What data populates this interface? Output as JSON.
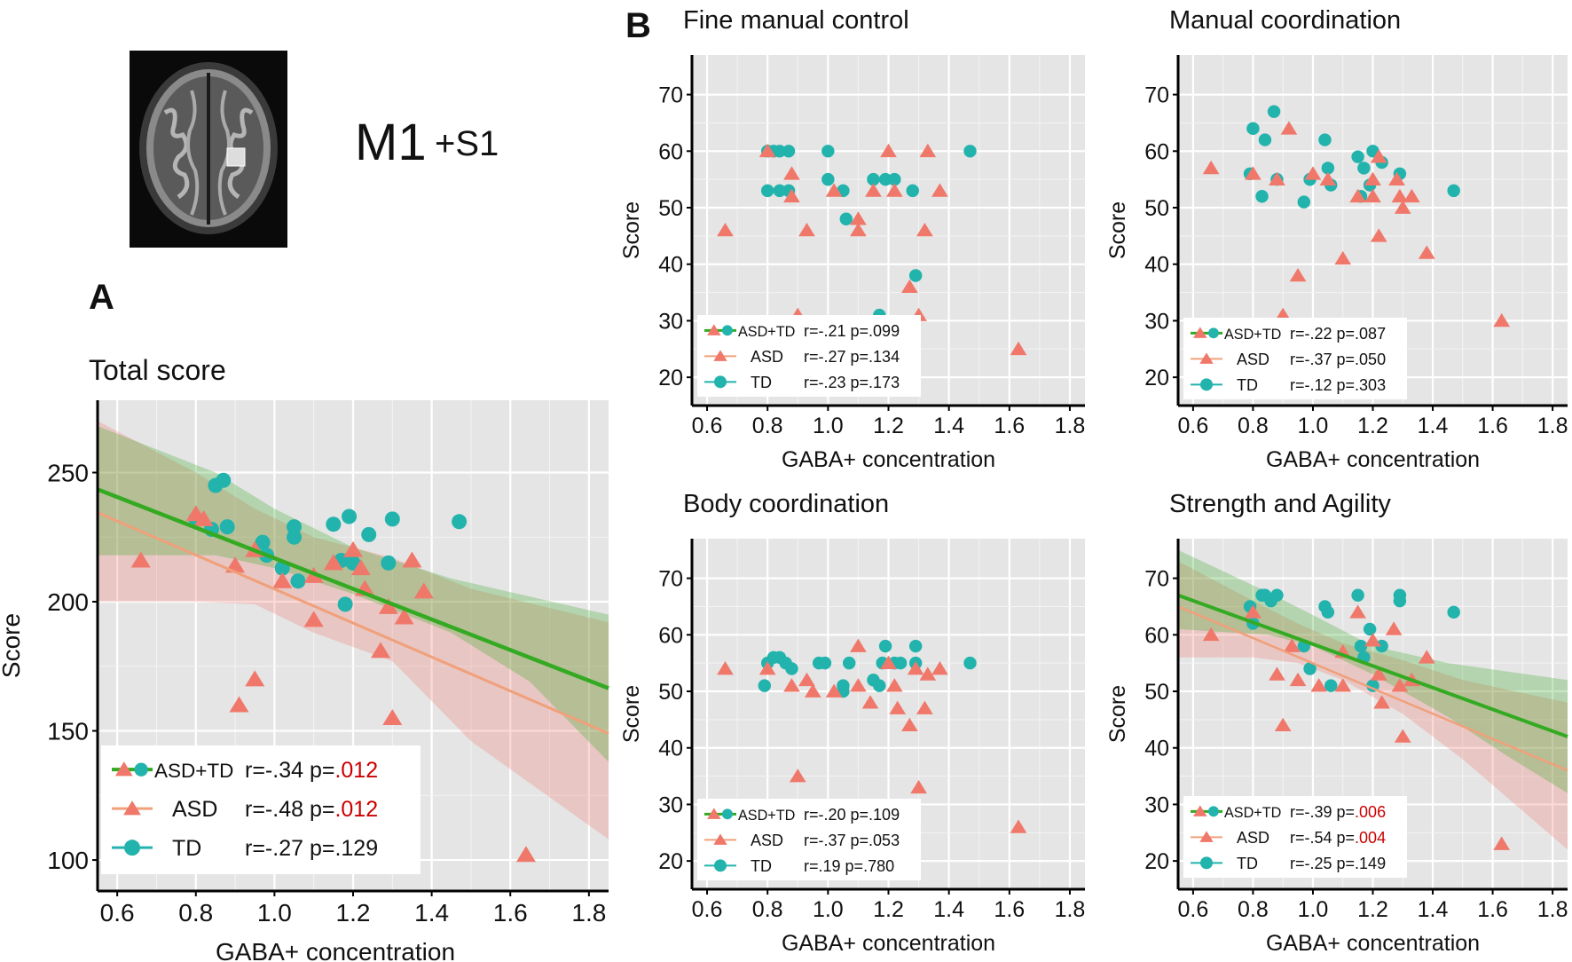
{
  "figure": {
    "region_title": "M1",
    "region_suffix": "+S1",
    "panel_a_letter": "A",
    "panel_b_letter": "B",
    "colors": {
      "asd": "#f0786b",
      "td": "#22b3ad",
      "combined": "#33aa22",
      "asd_line": "#f0a07a",
      "panel_bg": "#e5e5e5",
      "p_highlight": "#cc0000",
      "text": "#111111"
    }
  },
  "chart_data": [
    {
      "id": "total",
      "type": "scatter",
      "title": "Total score",
      "xlabel": "GABA+ concentration",
      "ylabel": "Score",
      "xlim": [
        0.55,
        1.85
      ],
      "ylim": [
        88,
        278
      ],
      "xticks": [
        "0.6",
        "0.8",
        "1.0",
        "1.2",
        "1.4",
        "1.6",
        "1.8"
      ],
      "yticks": [
        "100",
        "150",
        "200",
        "250"
      ],
      "ytick_values": [
        100,
        150,
        200,
        250
      ],
      "asd": [
        [
          0.66,
          216
        ],
        [
          0.8,
          234
        ],
        [
          0.82,
          232
        ],
        [
          0.9,
          214
        ],
        [
          0.91,
          160
        ],
        [
          0.95,
          220
        ],
        [
          0.95,
          170
        ],
        [
          1.02,
          208
        ],
        [
          1.1,
          193
        ],
        [
          1.1,
          210
        ],
        [
          1.15,
          215
        ],
        [
          1.2,
          220
        ],
        [
          1.22,
          213
        ],
        [
          1.23,
          205
        ],
        [
          1.27,
          181
        ],
        [
          1.29,
          198
        ],
        [
          1.3,
          155
        ],
        [
          1.33,
          194
        ],
        [
          1.35,
          216
        ],
        [
          1.38,
          204
        ],
        [
          1.64,
          102
        ]
      ],
      "td": [
        [
          0.8,
          232
        ],
        [
          0.84,
          228
        ],
        [
          0.85,
          245
        ],
        [
          0.87,
          247
        ],
        [
          0.88,
          229
        ],
        [
          0.97,
          223
        ],
        [
          0.98,
          218
        ],
        [
          1.02,
          213
        ],
        [
          1.05,
          225
        ],
        [
          1.05,
          229
        ],
        [
          1.06,
          208
        ],
        [
          1.15,
          230
        ],
        [
          1.17,
          216
        ],
        [
          1.18,
          199
        ],
        [
          1.19,
          233
        ],
        [
          1.2,
          215
        ],
        [
          1.24,
          226
        ],
        [
          1.29,
          215
        ],
        [
          1.3,
          232
        ],
        [
          1.47,
          231
        ]
      ],
      "fits": {
        "combined": {
          "x0": 0.55,
          "y0": 243.5,
          "x1": 1.85,
          "y1": 166.5
        },
        "asd": {
          "x0": 0.55,
          "y0": 234.5,
          "x1": 1.85,
          "y1": 149
        },
        "combined_band_upper": [
          [
            0.55,
            268
          ],
          [
            0.85,
            250
          ],
          [
            1.0,
            236
          ],
          [
            1.2,
            221
          ],
          [
            1.45,
            209
          ],
          [
            1.65,
            202
          ],
          [
            1.85,
            195
          ]
        ],
        "combined_band_lower": [
          [
            0.55,
            218
          ],
          [
            0.85,
            218
          ],
          [
            1.0,
            213
          ],
          [
            1.2,
            203
          ],
          [
            1.45,
            188
          ],
          [
            1.65,
            169
          ],
          [
            1.85,
            138
          ]
        ],
        "asd_band_upper": [
          [
            0.55,
            270
          ],
          [
            0.8,
            250
          ],
          [
            0.95,
            236
          ],
          [
            1.1,
            225
          ],
          [
            1.3,
            217
          ],
          [
            1.5,
            205
          ],
          [
            1.85,
            192
          ]
        ],
        "asd_band_lower": [
          [
            0.55,
            200
          ],
          [
            0.8,
            200
          ],
          [
            0.95,
            199
          ],
          [
            1.1,
            188
          ],
          [
            1.3,
            177
          ],
          [
            1.5,
            146
          ],
          [
            1.85,
            108
          ]
        ]
      },
      "legend": {
        "position": "bottom-left",
        "combined_label": "ASD+TD",
        "asd_label": "ASD",
        "td_label": "TD",
        "combined_r": "r=-.34 p=",
        "combined_p": ".012",
        "combined_p_sig": true,
        "asd_r": "r=-.48 p=",
        "asd_p": ".012",
        "asd_p_sig": true,
        "td_r": "r=-.27 p=",
        "td_p": ".129",
        "td_p_sig": false
      }
    },
    {
      "id": "fine",
      "type": "scatter",
      "title": "Fine manual control",
      "xlabel": "GABA+ concentration",
      "ylabel": "Score",
      "xlim": [
        0.55,
        1.85
      ],
      "ylim": [
        15,
        77
      ],
      "xticks": [
        "0.6",
        "0.8",
        "1.0",
        "1.2",
        "1.4",
        "1.6",
        "1.8"
      ],
      "yticks": [
        "20",
        "30",
        "40",
        "50",
        "60",
        "70"
      ],
      "ytick_values": [
        20,
        30,
        40,
        50,
        60,
        70
      ],
      "asd": [
        [
          0.66,
          46
        ],
        [
          0.8,
          60
        ],
        [
          0.88,
          56
        ],
        [
          0.88,
          52
        ],
        [
          0.9,
          31
        ],
        [
          0.93,
          46
        ],
        [
          1.02,
          53
        ],
        [
          1.1,
          48
        ],
        [
          1.1,
          46
        ],
        [
          1.15,
          53
        ],
        [
          1.2,
          60
        ],
        [
          1.22,
          53
        ],
        [
          1.27,
          36
        ],
        [
          1.3,
          31
        ],
        [
          1.32,
          46
        ],
        [
          1.33,
          60
        ],
        [
          1.37,
          53
        ],
        [
          1.63,
          25
        ]
      ],
      "td": [
        [
          0.8,
          60
        ],
        [
          0.8,
          53
        ],
        [
          0.82,
          60
        ],
        [
          0.84,
          60
        ],
        [
          0.84,
          53
        ],
        [
          0.87,
          60
        ],
        [
          0.87,
          53
        ],
        [
          1.0,
          60
        ],
        [
          1.0,
          55
        ],
        [
          1.05,
          53
        ],
        [
          1.06,
          48
        ],
        [
          1.15,
          55
        ],
        [
          1.17,
          31
        ],
        [
          1.19,
          55
        ],
        [
          1.22,
          55
        ],
        [
          1.28,
          53
        ],
        [
          1.29,
          38
        ],
        [
          1.47,
          60
        ]
      ],
      "fits": null,
      "legend": {
        "position": "bottom-left",
        "combined_label": "ASD+TD",
        "asd_label": "ASD",
        "td_label": "TD",
        "combined_r": "r=-.21 p=",
        "combined_p": ".099",
        "combined_p_sig": false,
        "asd_r": "r=-.27 p=",
        "asd_p": ".134",
        "asd_p_sig": false,
        "td_r": "r=-.23 p=",
        "td_p": ".173",
        "td_p_sig": false
      }
    },
    {
      "id": "manual",
      "type": "scatter",
      "title": "Manual coordination",
      "xlabel": "GABA+ concentration",
      "ylabel": "Score",
      "xlim": [
        0.55,
        1.85
      ],
      "ylim": [
        15,
        77
      ],
      "xticks": [
        "0.6",
        "0.8",
        "1.0",
        "1.2",
        "1.4",
        "1.6",
        "1.8"
      ],
      "yticks": [
        "20",
        "30",
        "40",
        "50",
        "60",
        "70"
      ],
      "ytick_values": [
        20,
        30,
        40,
        50,
        60,
        70
      ],
      "asd": [
        [
          0.66,
          57
        ],
        [
          0.8,
          56
        ],
        [
          0.88,
          55
        ],
        [
          0.9,
          31
        ],
        [
          0.92,
          64
        ],
        [
          0.95,
          38
        ],
        [
          1.0,
          56
        ],
        [
          1.05,
          55
        ],
        [
          1.1,
          41
        ],
        [
          1.15,
          52
        ],
        [
          1.2,
          55
        ],
        [
          1.2,
          52
        ],
        [
          1.22,
          45
        ],
        [
          1.22,
          59
        ],
        [
          1.28,
          55
        ],
        [
          1.29,
          52
        ],
        [
          1.3,
          50
        ],
        [
          1.33,
          52
        ],
        [
          1.38,
          42
        ],
        [
          1.63,
          30
        ]
      ],
      "td": [
        [
          0.79,
          56
        ],
        [
          0.8,
          64
        ],
        [
          0.83,
          52
        ],
        [
          0.84,
          62
        ],
        [
          0.87,
          67
        ],
        [
          0.88,
          55
        ],
        [
          0.97,
          51
        ],
        [
          0.99,
          55
        ],
        [
          1.04,
          62
        ],
        [
          1.05,
          57
        ],
        [
          1.06,
          54
        ],
        [
          1.15,
          59
        ],
        [
          1.16,
          52
        ],
        [
          1.17,
          57
        ],
        [
          1.19,
          54
        ],
        [
          1.2,
          60
        ],
        [
          1.23,
          58
        ],
        [
          1.29,
          56
        ],
        [
          1.47,
          53
        ]
      ],
      "fits": null,
      "legend": {
        "position": "bottom-left",
        "combined_label": "ASD+TD",
        "asd_label": "ASD",
        "td_label": "TD",
        "combined_r": "r=-.22 p=",
        "combined_p": ".087",
        "combined_p_sig": false,
        "asd_r": "r=-.37 p=",
        "asd_p": ".050",
        "asd_p_sig": false,
        "td_r": "r=-.12 p=",
        "td_p": ".303",
        "td_p_sig": false
      }
    },
    {
      "id": "body",
      "type": "scatter",
      "title": "Body coordination",
      "xlabel": "GABA+ concentration",
      "ylabel": "Score",
      "xlim": [
        0.55,
        1.85
      ],
      "ylim": [
        15,
        77
      ],
      "xticks": [
        "0.6",
        "0.8",
        "1.0",
        "1.2",
        "1.4",
        "1.6",
        "1.8"
      ],
      "yticks": [
        "20",
        "30",
        "40",
        "50",
        "60",
        "70"
      ],
      "ytick_values": [
        20,
        30,
        40,
        50,
        60,
        70
      ],
      "asd": [
        [
          0.66,
          54
        ],
        [
          0.8,
          54
        ],
        [
          0.88,
          51
        ],
        [
          0.9,
          35
        ],
        [
          0.93,
          52
        ],
        [
          0.95,
          50
        ],
        [
          1.02,
          50
        ],
        [
          1.1,
          51
        ],
        [
          1.1,
          58
        ],
        [
          1.14,
          48
        ],
        [
          1.2,
          55
        ],
        [
          1.22,
          51
        ],
        [
          1.23,
          47
        ],
        [
          1.27,
          44
        ],
        [
          1.29,
          54
        ],
        [
          1.3,
          33
        ],
        [
          1.32,
          47
        ],
        [
          1.33,
          53
        ],
        [
          1.37,
          54
        ],
        [
          1.63,
          26
        ]
      ],
      "td": [
        [
          0.79,
          51
        ],
        [
          0.8,
          55
        ],
        [
          0.82,
          56
        ],
        [
          0.84,
          56
        ],
        [
          0.86,
          55
        ],
        [
          0.88,
          54
        ],
        [
          0.97,
          55
        ],
        [
          0.99,
          55
        ],
        [
          1.05,
          50
        ],
        [
          1.05,
          51
        ],
        [
          1.07,
          55
        ],
        [
          1.15,
          52
        ],
        [
          1.17,
          51
        ],
        [
          1.18,
          55
        ],
        [
          1.19,
          58
        ],
        [
          1.22,
          55
        ],
        [
          1.24,
          55
        ],
        [
          1.29,
          58
        ],
        [
          1.29,
          55
        ],
        [
          1.47,
          55
        ]
      ],
      "fits": null,
      "legend": {
        "position": "bottom-left",
        "combined_label": "ASD+TD",
        "asd_label": "ASD",
        "td_label": "TD",
        "combined_r": "r=-.20 p=",
        "combined_p": ".109",
        "combined_p_sig": false,
        "asd_r": "r=-.37 p=",
        "asd_p": ".053",
        "asd_p_sig": false,
        "td_r": "r=.19 p=",
        "td_p": ".780",
        "td_p_sig": false
      }
    },
    {
      "id": "strength",
      "type": "scatter",
      "title": "Strength and Agility",
      "xlabel": "GABA+ concentration",
      "ylabel": "Score",
      "xlim": [
        0.55,
        1.85
      ],
      "ylim": [
        15,
        77
      ],
      "xticks": [
        "0.6",
        "0.8",
        "1.0",
        "1.2",
        "1.4",
        "1.6",
        "1.8"
      ],
      "yticks": [
        "20",
        "30",
        "40",
        "50",
        "60",
        "70"
      ],
      "ytick_values": [
        20,
        30,
        40,
        50,
        60,
        70
      ],
      "asd": [
        [
          0.66,
          60
        ],
        [
          0.8,
          64
        ],
        [
          0.88,
          53
        ],
        [
          0.9,
          44
        ],
        [
          0.93,
          58
        ],
        [
          0.95,
          52
        ],
        [
          1.02,
          51
        ],
        [
          1.1,
          51
        ],
        [
          1.1,
          57
        ],
        [
          1.15,
          64
        ],
        [
          1.2,
          59
        ],
        [
          1.22,
          53
        ],
        [
          1.23,
          48
        ],
        [
          1.27,
          61
        ],
        [
          1.29,
          51
        ],
        [
          1.3,
          42
        ],
        [
          1.33,
          52
        ],
        [
          1.38,
          56
        ],
        [
          1.63,
          23
        ]
      ],
      "td": [
        [
          0.79,
          65
        ],
        [
          0.8,
          62
        ],
        [
          0.83,
          67
        ],
        [
          0.84,
          67
        ],
        [
          0.86,
          66
        ],
        [
          0.88,
          67
        ],
        [
          0.97,
          58
        ],
        [
          0.99,
          54
        ],
        [
          1.04,
          65
        ],
        [
          1.05,
          64
        ],
        [
          1.06,
          51
        ],
        [
          1.15,
          67
        ],
        [
          1.16,
          58
        ],
        [
          1.17,
          56
        ],
        [
          1.19,
          61
        ],
        [
          1.2,
          51
        ],
        [
          1.23,
          58
        ],
        [
          1.29,
          67
        ],
        [
          1.29,
          66
        ],
        [
          1.47,
          64
        ]
      ],
      "fits": {
        "combined": {
          "x0": 0.55,
          "y0": 67,
          "x1": 1.85,
          "y1": 42
        },
        "asd": {
          "x0": 0.55,
          "y0": 65,
          "x1": 1.85,
          "y1": 36
        },
        "combined_band_upper": [
          [
            0.55,
            75
          ],
          [
            0.85,
            67.5
          ],
          [
            1.0,
            63.5
          ],
          [
            1.2,
            58
          ],
          [
            1.45,
            55
          ],
          [
            1.65,
            53.5
          ],
          [
            1.85,
            52
          ]
        ],
        "combined_band_lower": [
          [
            0.55,
            61
          ],
          [
            0.85,
            60
          ],
          [
            1.0,
            58
          ],
          [
            1.2,
            53
          ],
          [
            1.45,
            45.5
          ],
          [
            1.65,
            38.5
          ],
          [
            1.85,
            32
          ]
        ],
        "asd_band_upper": [
          [
            0.55,
            73
          ],
          [
            0.8,
            66
          ],
          [
            0.95,
            62
          ],
          [
            1.1,
            58.5
          ],
          [
            1.3,
            55.5
          ],
          [
            1.5,
            52
          ],
          [
            1.85,
            48
          ]
        ],
        "asd_band_lower": [
          [
            0.55,
            56
          ],
          [
            0.8,
            56
          ],
          [
            0.95,
            55
          ],
          [
            1.1,
            52
          ],
          [
            1.3,
            46
          ],
          [
            1.5,
            38
          ],
          [
            1.85,
            22
          ]
        ]
      },
      "legend": {
        "position": "bottom-left",
        "combined_label": "ASD+TD",
        "asd_label": "ASD",
        "td_label": "TD",
        "combined_r": "r=-.39 p=",
        "combined_p": ".006",
        "combined_p_sig": true,
        "asd_r": "r=-.54 p=",
        "asd_p": ".004",
        "asd_p_sig": true,
        "td_r": "r=-.25 p=",
        "td_p": ".149",
        "td_p_sig": false
      }
    }
  ]
}
